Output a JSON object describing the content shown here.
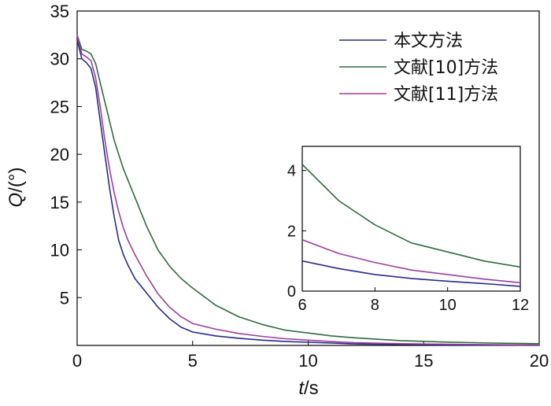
{
  "chart_data": {
    "type": "line",
    "xlabel_var": "t",
    "xlabel_unit": "/s",
    "ylabel_var": "Q",
    "ylabel_unit": "/(°)",
    "xlim": [
      0,
      20
    ],
    "ylim": [
      0,
      35
    ],
    "xticks": [
      0,
      5,
      10,
      15,
      20
    ],
    "yticks": [
      5,
      10,
      15,
      20,
      25,
      30,
      35
    ],
    "grid": false,
    "legend_position": "top-right",
    "series": [
      {
        "name": "本文方法",
        "color": "#2a2a8a",
        "x": [
          0,
          0.2,
          0.4,
          0.6,
          0.8,
          1.0,
          1.2,
          1.4,
          1.6,
          1.8,
          2.0,
          2.2,
          2.5,
          3.0,
          3.5,
          4.0,
          4.5,
          5.0,
          6.0,
          7.0,
          8.0,
          9.0,
          10.0,
          11.0,
          12.0,
          14.0,
          16.0,
          18.0,
          20.0
        ],
        "y": [
          32.0,
          30.0,
          29.6,
          29.0,
          27.0,
          23.5,
          20.0,
          16.5,
          13.5,
          11.0,
          9.5,
          8.4,
          7.0,
          5.5,
          4.0,
          2.8,
          1.9,
          1.4,
          1.0,
          0.75,
          0.55,
          0.42,
          0.33,
          0.25,
          0.16,
          0.1,
          0.06,
          0.03,
          0.02
        ]
      },
      {
        "name": "文献[10]方法",
        "color": "#2e6b3e",
        "x": [
          0,
          0.2,
          0.4,
          0.6,
          0.8,
          1.0,
          1.2,
          1.4,
          1.6,
          1.8,
          2.0,
          2.5,
          3.0,
          3.5,
          4.0,
          4.5,
          5.0,
          6.0,
          7.0,
          8.0,
          9.0,
          10.0,
          11.0,
          12.0,
          14.0,
          16.0,
          18.0,
          20.0
        ],
        "y": [
          32.5,
          31.0,
          30.8,
          30.5,
          29.5,
          27.5,
          25.5,
          23.5,
          21.5,
          20.0,
          18.5,
          15.5,
          12.5,
          10.0,
          8.3,
          7.0,
          6.0,
          4.2,
          3.0,
          2.2,
          1.6,
          1.3,
          1.0,
          0.8,
          0.5,
          0.35,
          0.25,
          0.18
        ]
      },
      {
        "name": "文献[11]方法",
        "color": "#9b3f9b",
        "x": [
          0,
          0.2,
          0.4,
          0.6,
          0.8,
          1.0,
          1.2,
          1.4,
          1.6,
          1.8,
          2.0,
          2.2,
          2.5,
          3.0,
          3.5,
          4.0,
          4.5,
          5.0,
          6.0,
          7.0,
          8.0,
          9.0,
          10.0,
          11.0,
          12.0,
          14.0,
          16.0,
          18.0,
          20.0
        ],
        "y": [
          32.5,
          30.5,
          30.2,
          29.8,
          28.0,
          25.0,
          21.5,
          18.5,
          16.0,
          14.0,
          12.3,
          11.0,
          9.5,
          7.3,
          5.4,
          4.0,
          3.0,
          2.3,
          1.7,
          1.25,
          0.95,
          0.7,
          0.55,
          0.4,
          0.28,
          0.18,
          0.12,
          0.08,
          0.05
        ]
      }
    ],
    "inset": {
      "xlim": [
        6,
        12
      ],
      "ylim": [
        0,
        4.8
      ],
      "xticks": [
        6,
        8,
        10,
        12
      ],
      "yticks": [
        0,
        2,
        4
      ]
    }
  }
}
